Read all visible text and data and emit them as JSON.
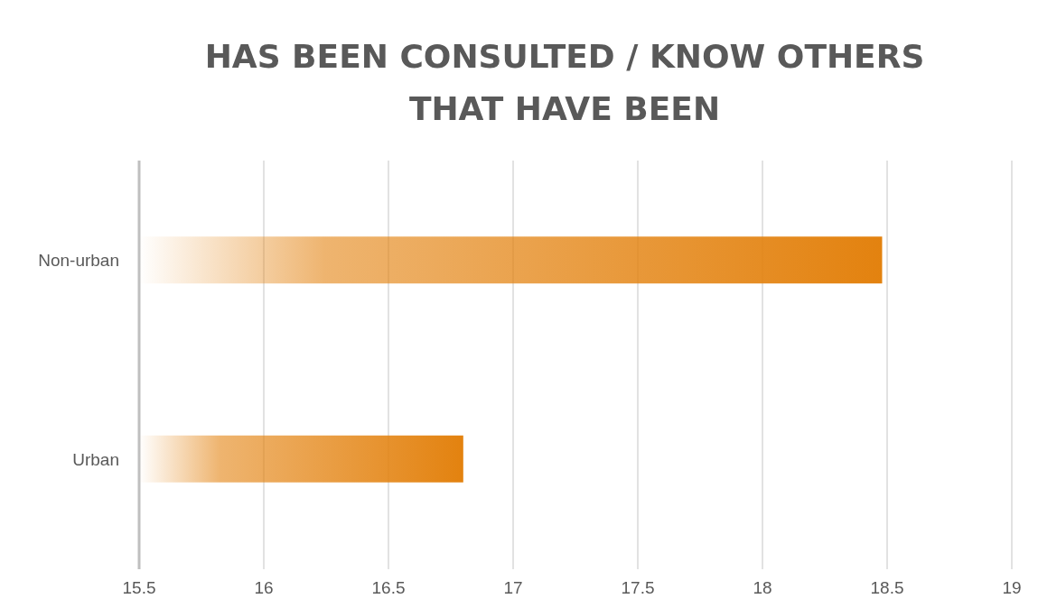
{
  "chart_data": {
    "type": "bar",
    "orientation": "horizontal",
    "title": "HAS BEEN CONSULTED / KNOW OTHERS THAT HAVE BEEN",
    "categories": [
      "Non-urban",
      "Urban"
    ],
    "values": [
      18.48,
      16.8
    ],
    "color": "#e3820f",
    "xlim": [
      15.5,
      19
    ],
    "xticks": [
      15.5,
      16,
      16.5,
      17,
      17.5,
      18,
      18.5,
      19
    ],
    "grid": "x"
  }
}
